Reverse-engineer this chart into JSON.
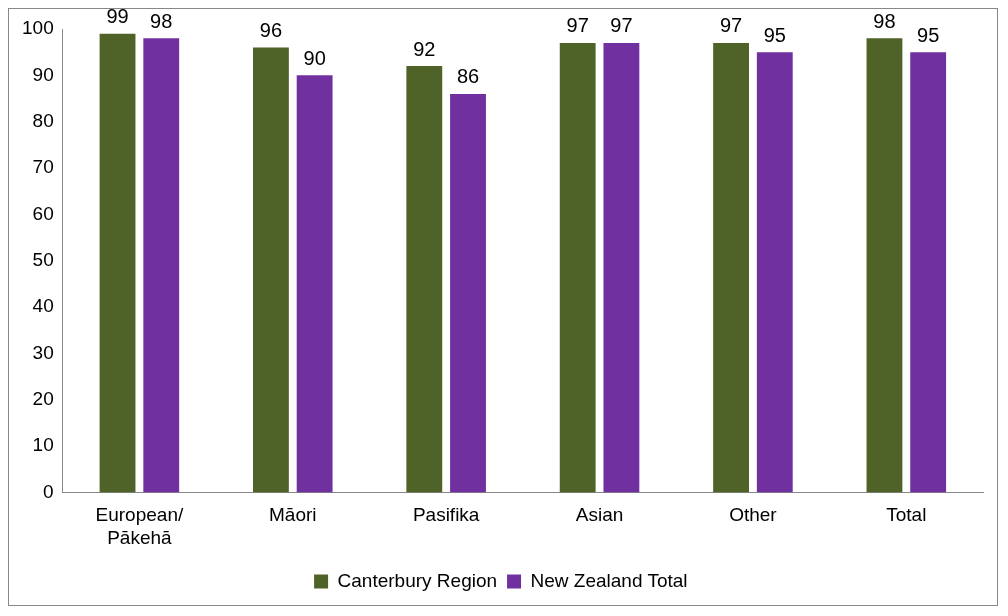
{
  "chart_data": {
    "type": "bar",
    "categories": [
      "European/Pākehā",
      "Māori",
      "Pasifika",
      "Asian",
      "Other",
      "Total"
    ],
    "series": [
      {
        "name": "Canterbury Region",
        "color": "#4f6228",
        "values": [
          99,
          96,
          92,
          97,
          97,
          98
        ]
      },
      {
        "name": "New Zealand Total",
        "color": "#7030a0",
        "values": [
          98,
          90,
          86,
          97,
          95,
          95
        ]
      }
    ],
    "ylim": [
      0,
      100
    ],
    "yticks": [
      0,
      10,
      20,
      30,
      40,
      50,
      60,
      70,
      80,
      90,
      100
    ],
    "grid": false,
    "legend": "bottom",
    "data_labels": true
  }
}
